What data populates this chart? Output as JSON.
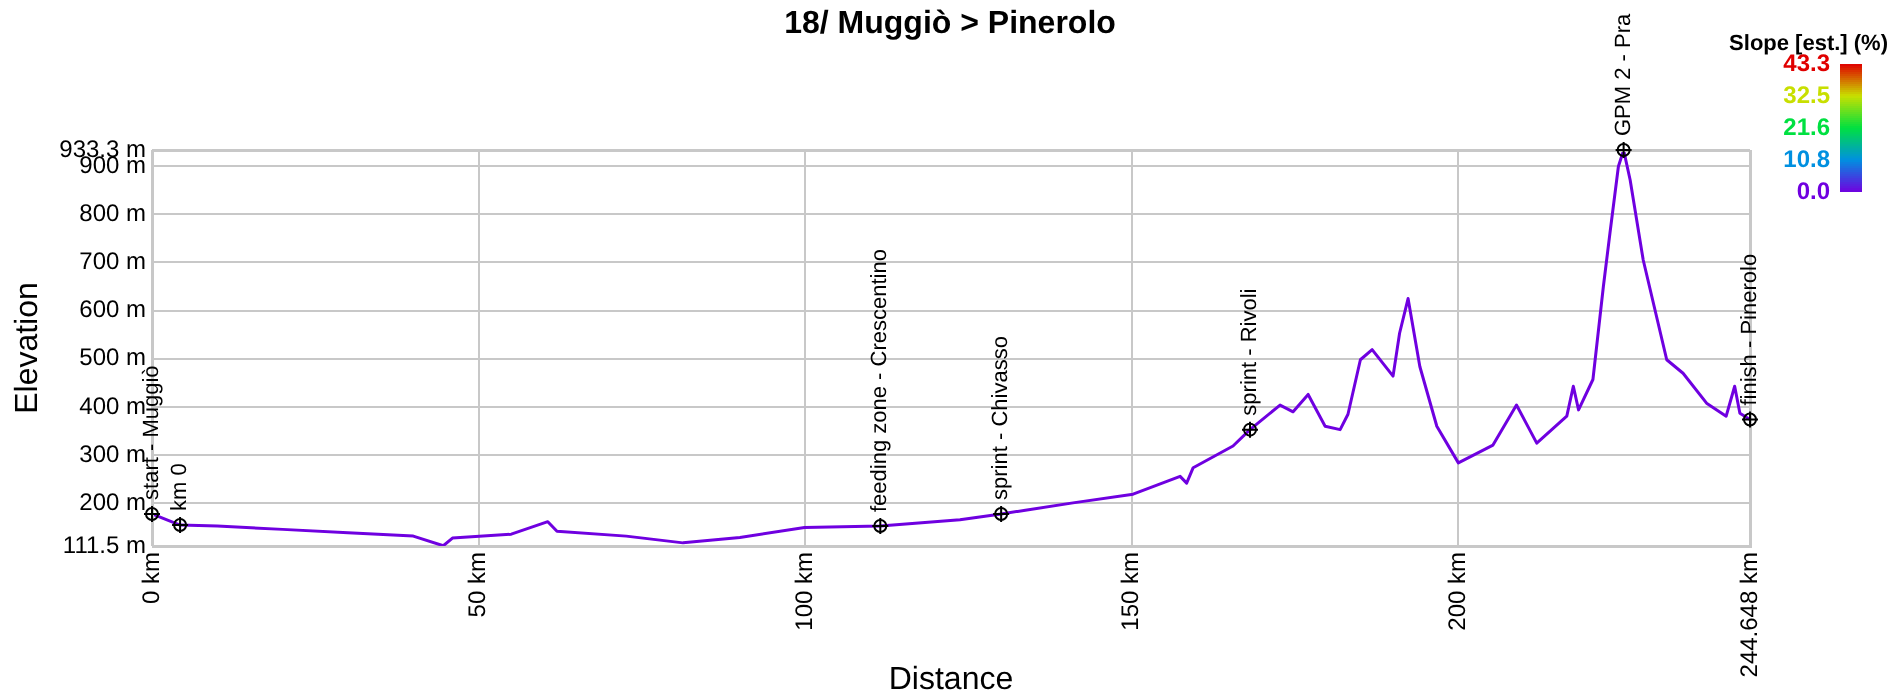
{
  "chart_data": {
    "type": "line",
    "title": "18/ Muggiò > Pinerolo",
    "xlabel": "Distance",
    "ylabel": "Elevation",
    "clabel": "Slope [est.] (%)",
    "clim": [
      0,
      43.3
    ],
    "cticks": [
      {
        "value": 43.3,
        "label": "43.3"
      },
      {
        "value": 32.5,
        "label": "32.5"
      },
      {
        "value": 21.6,
        "label": "21.6"
      },
      {
        "value": 10.8,
        "label": "10.8"
      },
      {
        "value": 0,
        "label": "0.0"
      }
    ],
    "xlim": [
      0,
      244.648
    ],
    "xticks": [
      {
        "value": 0,
        "label": "0 km"
      },
      {
        "value": 50,
        "label": "50 km"
      },
      {
        "value": 100,
        "label": "100 km"
      },
      {
        "value": 150,
        "label": "150 km"
      },
      {
        "value": 200,
        "label": "200 km"
      },
      {
        "value": 244.648,
        "label": "244.648 km"
      }
    ],
    "ylim": [
      111.5,
      933.3
    ],
    "yticks": [
      {
        "value": 111.5,
        "label": "111.5 m"
      },
      {
        "value": 200,
        "label": "200 m"
      },
      {
        "value": 300,
        "label": "300 m"
      },
      {
        "value": 400,
        "label": "400 m"
      },
      {
        "value": 500,
        "label": "500 m"
      },
      {
        "value": 600,
        "label": "600 m"
      },
      {
        "value": 700,
        "label": "700 m"
      },
      {
        "value": 800,
        "label": "800 m"
      },
      {
        "value": 900,
        "label": "900 m"
      },
      {
        "value": 933.3,
        "label": "933.3 m"
      }
    ],
    "grid": true,
    "legend": false,
    "marker": "none",
    "series": [
      {
        "color": "#6f00e0",
        "x": [
          0,
          4.3,
          10,
          20,
          30,
          40,
          44.6,
          46,
          55,
          60.6,
          62,
          72.6,
          81.3,
          90,
          99.9,
          111.5,
          123.7,
          130,
          141,
          150.2,
          157.4,
          158.4,
          159.4,
          165.5,
          168.1,
          172.7,
          174.7,
          177,
          179.6,
          181.9,
          183.1,
          185,
          186.8,
          190,
          191,
          192.3,
          194.1,
          196.7,
          200,
          205.3,
          208.9,
          212,
          216.6,
          217.6,
          218.4,
          220.6,
          222.2,
          223.2,
          224.5,
          225.3,
          226.3,
          228.3,
          231.9,
          234.4,
          238,
          241,
          242.3,
          243.1,
          244.648
        ],
        "values": [
          178,
          155,
          153,
          146,
          139,
          132,
          112,
          128,
          136,
          162,
          142,
          132,
          118,
          129,
          150,
          153,
          166,
          178,
          201,
          219,
          256,
          242,
          274,
          319,
          353,
          404,
          390,
          426,
          360,
          353,
          385,
          498,
          519,
          464,
          553,
          625,
          484,
          360,
          284,
          321,
          404,
          325,
          381,
          443,
          394,
          457,
          650,
          760,
          899,
          933,
          871,
          705,
          498,
          470,
          408,
          381,
          443,
          387,
          374
        ]
      }
    ],
    "annotations": [
      {
        "text": "start - Muggiò",
        "x": 0,
        "y": 178
      },
      {
        "text": "km 0",
        "x": 4.3,
        "y": 155
      },
      {
        "text": "feeding zone - Crescentino",
        "x": 111.5,
        "y": 153
      },
      {
        "text": "sprint - Chivasso",
        "x": 130,
        "y": 178
      },
      {
        "text": "sprint - Rivoli",
        "x": 168.1,
        "y": 353
      },
      {
        "text": "GPM 2 - Pra",
        "x": 225.3,
        "y": 933.3
      },
      {
        "text": "finish - Pinerolo",
        "x": 244.648,
        "y": 374
      }
    ]
  }
}
